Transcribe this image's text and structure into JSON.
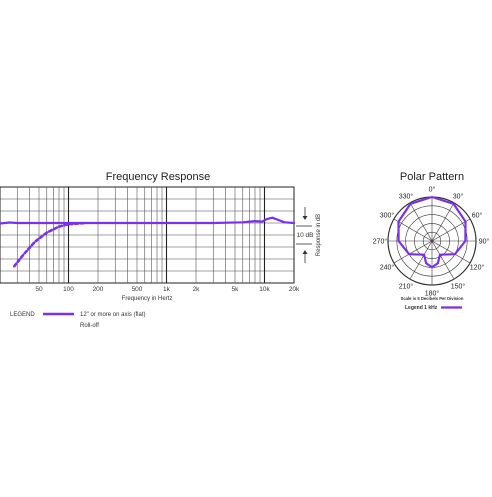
{
  "chart_data": [
    {
      "type": "line",
      "title": "Frequency Response",
      "xlabel": "Frequency in Hertz",
      "ylabel": "Response in dB",
      "x_scale": "log",
      "xlim": [
        20,
        20000
      ],
      "x_ticks": [
        {
          "value": 50,
          "label": "50"
        },
        {
          "value": 100,
          "label": "100"
        },
        {
          "value": 200,
          "label": "200"
        },
        {
          "value": 500,
          "label": "500"
        },
        {
          "value": 1000,
          "label": "1k"
        },
        {
          "value": 2000,
          "label": "2k"
        },
        {
          "value": 5000,
          "label": "5k"
        },
        {
          "value": 10000,
          "label": "10k"
        },
        {
          "value": 20000,
          "label": "20k"
        }
      ],
      "ylim": [
        -25,
        15
      ],
      "scale_marker": "10 dB",
      "grid": true,
      "series": [
        {
          "name": "12\" or more on axis (flat)",
          "color": "#7b2ff0",
          "style": "solid",
          "points": [
            [
              20,
              -0.2
            ],
            [
              25,
              0.2
            ],
            [
              30,
              0
            ],
            [
              50,
              0
            ],
            [
              100,
              0
            ],
            [
              500,
              0
            ],
            [
              1000,
              0
            ],
            [
              3000,
              0
            ],
            [
              6000,
              0.3
            ],
            [
              8000,
              0.8
            ],
            [
              9500,
              0.6
            ],
            [
              10500,
              1.6
            ],
            [
              12000,
              2.2
            ],
            [
              14000,
              1.2
            ],
            [
              16000,
              0.3
            ],
            [
              20000,
              0
            ]
          ]
        },
        {
          "name": "Roll-off",
          "color": "#7b2ff0",
          "style": "dashed",
          "points": [
            [
              28,
              -18
            ],
            [
              35,
              -13
            ],
            [
              45,
              -8
            ],
            [
              60,
              -4
            ],
            [
              80,
              -1.5
            ],
            [
              100,
              -0.5
            ],
            [
              150,
              0
            ]
          ]
        }
      ],
      "legend": {
        "title": "LEGEND",
        "entries": [
          "12\" or more on axis (flat)",
          "Roll-off"
        ]
      }
    },
    {
      "type": "polar",
      "title": "Polar Pattern",
      "angle_labels": [
        "0°",
        "30°",
        "60°",
        "90°",
        "120°",
        "150°",
        "180°",
        "210°",
        "240°",
        "270°",
        "300°",
        "330°"
      ],
      "ring_step_db": 5,
      "ring_count": 5,
      "scale_note": "Scale is 5 Decibels Per Division",
      "color": "#7b2ff0",
      "legend": "Legend 1 kHz",
      "series": [
        {
          "name": "1 kHz",
          "points_deg_db": [
            [
              0,
              0
            ],
            [
              30,
              -0.6
            ],
            [
              60,
              -3
            ],
            [
              90,
              -6
            ],
            [
              120,
              -10
            ],
            [
              150,
              -16
            ],
            [
              165,
              -12
            ],
            [
              180,
              -10
            ],
            [
              195,
              -12
            ],
            [
              210,
              -16
            ],
            [
              240,
              -10
            ],
            [
              270,
              -6
            ],
            [
              300,
              -3
            ],
            [
              330,
              -0.6
            ]
          ]
        }
      ]
    }
  ]
}
